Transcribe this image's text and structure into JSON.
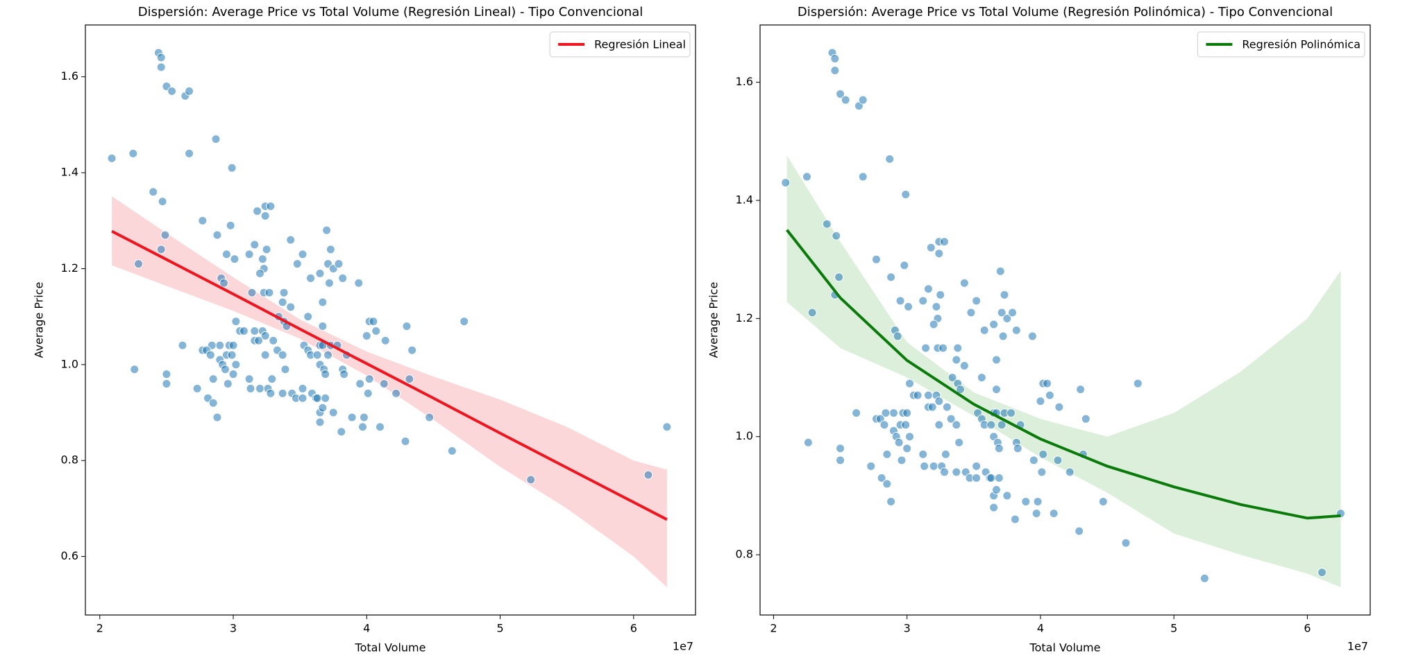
{
  "chart_data": [
    {
      "type": "scatter",
      "title": "Dispersión: Average Price vs Total Volume (Regresión Lineal) - Tipo Convencional",
      "x_label": "Total Volume",
      "y_label": "Average Price",
      "x_offset_label": "1e7",
      "xlim": [
        1.892,
        6.464
      ],
      "ylim": [
        0.478,
        1.708
      ],
      "xticks": [
        2,
        3,
        4,
        5,
        6
      ],
      "yticks": [
        0.6,
        0.8,
        {
          "value": 1,
          "label": "1.0"
        },
        1.2,
        1.4,
        1.6
      ],
      "grid": false,
      "legend": "upper right",
      "points": {
        "color": "#1f77b4",
        "x": [
          2.09,
          2.25,
          2.44,
          2.46,
          2.46,
          2.5,
          2.54,
          2.64,
          2.67,
          2.4,
          2.47,
          2.49,
          2.46,
          2.29,
          2.26,
          2.5,
          2.5,
          2.67,
          2.87,
          2.99,
          2.77,
          2.88,
          2.98,
          2.95,
          3.01,
          3.18,
          3.24,
          3.28,
          3.24,
          3.16,
          3.25,
          3.12,
          3.22,
          3.23,
          3.2,
          2.91,
          2.93,
          3.14,
          3.23,
          3.27,
          3.38,
          3.37,
          3.43,
          3.34,
          3.38,
          3.4,
          3.43,
          3.48,
          3.52,
          3.58,
          3.65,
          3.7,
          3.73,
          3.71,
          3.75,
          3.79,
          3.72,
          3.82,
          3.67,
          3.56,
          3.67,
          3.94,
          3.02,
          3.05,
          3.08,
          3.16,
          3.22,
          3.24,
          3.16,
          3.19,
          3.3,
          3.33,
          3.24,
          3.37,
          2.97,
          3.0,
          2.9,
          2.84,
          2.77,
          2.8,
          2.83,
          2.95,
          2.99,
          2.9,
          2.92,
          3.02,
          2.94,
          3.0,
          2.62,
          2.85,
          2.96,
          3.12,
          3.13,
          3.2,
          3.26,
          3.28,
          3.29,
          3.37,
          2.73,
          2.81,
          2.85,
          2.88,
          3.39,
          3.44,
          3.47,
          3.52,
          3.52,
          3.59,
          3.62,
          3.63,
          3.69,
          3.65,
          3.67,
          3.65,
          3.75,
          3.81,
          3.89,
          3.97,
          3.98,
          4.1,
          3.53,
          3.56,
          3.58,
          3.63,
          3.65,
          3.67,
          3.65,
          3.68,
          3.69,
          3.73,
          3.71,
          3.78,
          3.82,
          3.83,
          3.85,
          4.0,
          4.02,
          4.05,
          4.07,
          4.14,
          3.95,
          4.01,
          4.02,
          4.13,
          4.22,
          4.3,
          4.34,
          4.32,
          4.29,
          4.47,
          4.64,
          4.73,
          5.23,
          6.11,
          6.25
        ],
        "values": [
          1.43,
          1.44,
          1.65,
          1.64,
          1.62,
          1.58,
          1.57,
          1.56,
          1.57,
          1.36,
          1.34,
          1.27,
          1.24,
          1.21,
          0.99,
          0.98,
          0.96,
          1.44,
          1.47,
          1.41,
          1.3,
          1.27,
          1.29,
          1.23,
          1.22,
          1.32,
          1.33,
          1.33,
          1.31,
          1.25,
          1.24,
          1.23,
          1.22,
          1.2,
          1.19,
          1.18,
          1.17,
          1.15,
          1.15,
          1.15,
          1.15,
          1.13,
          1.12,
          1.1,
          1.09,
          1.08,
          1.26,
          1.21,
          1.23,
          1.18,
          1.19,
          1.28,
          1.24,
          1.21,
          1.2,
          1.21,
          1.17,
          1.18,
          1.13,
          1.1,
          1.08,
          1.17,
          1.09,
          1.07,
          1.07,
          1.07,
          1.07,
          1.06,
          1.05,
          1.05,
          1.05,
          1.03,
          1.02,
          1.02,
          1.04,
          1.04,
          1.04,
          1.04,
          1.03,
          1.03,
          1.02,
          1.02,
          1.02,
          1.01,
          1.0,
          1.0,
          0.99,
          0.98,
          1.04,
          0.97,
          0.96,
          0.97,
          0.95,
          0.95,
          0.95,
          0.94,
          0.97,
          0.94,
          0.95,
          0.93,
          0.92,
          0.89,
          0.99,
          0.94,
          0.93,
          0.95,
          0.93,
          0.94,
          0.93,
          0.93,
          0.93,
          0.9,
          0.91,
          0.88,
          0.9,
          0.86,
          0.89,
          0.87,
          0.89,
          0.87,
          1.04,
          1.03,
          1.02,
          1.02,
          1.04,
          1.04,
          1.0,
          0.99,
          0.98,
          1.04,
          1.02,
          1.04,
          0.99,
          0.98,
          1.02,
          1.06,
          1.09,
          1.09,
          1.07,
          1.05,
          0.96,
          0.94,
          0.97,
          0.96,
          0.94,
          1.08,
          1.03,
          0.97,
          0.84,
          0.89,
          0.82,
          1.09,
          0.76,
          0.77,
          0.87
        ]
      },
      "fit": {
        "name": "Regresión Lineal",
        "color": "#f0141e",
        "band_color": "#f0141e",
        "x": [
          2.09,
          2.5,
          3.0,
          3.5,
          4.0,
          4.5,
          5.0,
          5.5,
          6.0,
          6.25
        ],
        "values": [
          1.278,
          1.219,
          1.147,
          1.074,
          1.002,
          0.93,
          0.857,
          0.785,
          0.713,
          0.677
        ],
        "upper": [
          1.351,
          1.274,
          1.182,
          1.094,
          1.027,
          0.975,
          0.927,
          0.87,
          0.8,
          0.781
        ],
        "lower": [
          1.207,
          1.164,
          1.112,
          1.054,
          0.977,
          0.885,
          0.787,
          0.7,
          0.6,
          0.536
        ]
      }
    },
    {
      "type": "scatter",
      "title": "Dispersión: Average Price vs Total Volume (Regresión Polinómica) - Tipo Convencional",
      "x_label": "Total Volume",
      "y_label": "Average Price",
      "x_offset_label": "1e7",
      "xlim": [
        1.899,
        6.471
      ],
      "ylim": [
        0.698,
        1.697
      ],
      "xticks": [
        2,
        3,
        4,
        5,
        6
      ],
      "yticks": [
        0.8,
        {
          "value": 1,
          "label": "1.0"
        },
        1.2,
        1.4,
        1.6
      ],
      "grid": false,
      "legend": "upper right",
      "points": {
        "color": "#1f77b4",
        "x": [
          2.09,
          2.25,
          2.44,
          2.46,
          2.46,
          2.5,
          2.54,
          2.64,
          2.67,
          2.4,
          2.47,
          2.49,
          2.46,
          2.29,
          2.26,
          2.5,
          2.5,
          2.67,
          2.87,
          2.99,
          2.77,
          2.88,
          2.98,
          2.95,
          3.01,
          3.18,
          3.24,
          3.28,
          3.24,
          3.16,
          3.25,
          3.12,
          3.22,
          3.23,
          3.2,
          2.91,
          2.93,
          3.14,
          3.23,
          3.27,
          3.38,
          3.37,
          3.43,
          3.34,
          3.38,
          3.4,
          3.43,
          3.48,
          3.52,
          3.58,
          3.65,
          3.7,
          3.73,
          3.71,
          3.75,
          3.79,
          3.72,
          3.82,
          3.67,
          3.56,
          3.67,
          3.94,
          3.02,
          3.05,
          3.08,
          3.16,
          3.22,
          3.24,
          3.16,
          3.19,
          3.3,
          3.33,
          3.24,
          3.37,
          2.97,
          3.0,
          2.9,
          2.84,
          2.77,
          2.8,
          2.83,
          2.95,
          2.99,
          2.9,
          2.92,
          3.02,
          2.94,
          3.0,
          2.62,
          2.85,
          2.96,
          3.12,
          3.13,
          3.2,
          3.26,
          3.28,
          3.29,
          3.37,
          2.73,
          2.81,
          2.85,
          2.88,
          3.39,
          3.44,
          3.47,
          3.52,
          3.52,
          3.59,
          3.62,
          3.63,
          3.69,
          3.65,
          3.67,
          3.65,
          3.75,
          3.81,
          3.89,
          3.97,
          3.98,
          4.1,
          3.53,
          3.56,
          3.58,
          3.63,
          3.65,
          3.67,
          3.65,
          3.68,
          3.69,
          3.73,
          3.71,
          3.78,
          3.82,
          3.83,
          3.85,
          4.0,
          4.02,
          4.05,
          4.07,
          4.14,
          3.95,
          4.01,
          4.02,
          4.13,
          4.22,
          4.3,
          4.34,
          4.32,
          4.29,
          4.47,
          4.64,
          4.73,
          5.23,
          6.11,
          6.25
        ],
        "values": [
          1.43,
          1.44,
          1.65,
          1.64,
          1.62,
          1.58,
          1.57,
          1.56,
          1.57,
          1.36,
          1.34,
          1.27,
          1.24,
          1.21,
          0.99,
          0.98,
          0.96,
          1.44,
          1.47,
          1.41,
          1.3,
          1.27,
          1.29,
          1.23,
          1.22,
          1.32,
          1.33,
          1.33,
          1.31,
          1.25,
          1.24,
          1.23,
          1.22,
          1.2,
          1.19,
          1.18,
          1.17,
          1.15,
          1.15,
          1.15,
          1.15,
          1.13,
          1.12,
          1.1,
          1.09,
          1.08,
          1.26,
          1.21,
          1.23,
          1.18,
          1.19,
          1.28,
          1.24,
          1.21,
          1.2,
          1.21,
          1.17,
          1.18,
          1.13,
          1.1,
          1.08,
          1.17,
          1.09,
          1.07,
          1.07,
          1.07,
          1.07,
          1.06,
          1.05,
          1.05,
          1.05,
          1.03,
          1.02,
          1.02,
          1.04,
          1.04,
          1.04,
          1.04,
          1.03,
          1.03,
          1.02,
          1.02,
          1.02,
          1.01,
          1.0,
          1.0,
          0.99,
          0.98,
          1.04,
          0.97,
          0.96,
          0.97,
          0.95,
          0.95,
          0.95,
          0.94,
          0.97,
          0.94,
          0.95,
          0.93,
          0.92,
          0.89,
          0.99,
          0.94,
          0.93,
          0.95,
          0.93,
          0.94,
          0.93,
          0.93,
          0.93,
          0.9,
          0.91,
          0.88,
          0.9,
          0.86,
          0.89,
          0.87,
          0.89,
          0.87,
          1.04,
          1.03,
          1.02,
          1.02,
          1.04,
          1.04,
          1.0,
          0.99,
          0.98,
          1.04,
          1.02,
          1.04,
          0.99,
          0.98,
          1.02,
          1.06,
          1.09,
          1.09,
          1.07,
          1.05,
          0.96,
          0.94,
          0.97,
          0.96,
          0.94,
          1.08,
          1.03,
          0.97,
          0.84,
          0.89,
          0.82,
          1.09,
          0.76,
          0.77,
          0.87
        ]
      },
      "fit": {
        "name": "Regresión Polinómica",
        "color": "#0a7a0a",
        "band_color": "#2ca02c",
        "x": [
          2.1,
          2.5,
          3.0,
          3.5,
          4.0,
          4.5,
          5.0,
          5.5,
          6.0,
          6.25
        ],
        "values": [
          1.35,
          1.235,
          1.129,
          1.055,
          0.996,
          0.95,
          0.915,
          0.885,
          0.862,
          0.866
        ],
        "upper": [
          1.476,
          1.33,
          1.16,
          1.075,
          1.03,
          1.0,
          1.04,
          1.11,
          1.2,
          1.281
        ],
        "lower": [
          1.228,
          1.15,
          1.1,
          1.035,
          0.965,
          0.905,
          0.836,
          0.8,
          0.768,
          0.745
        ]
      }
    }
  ]
}
